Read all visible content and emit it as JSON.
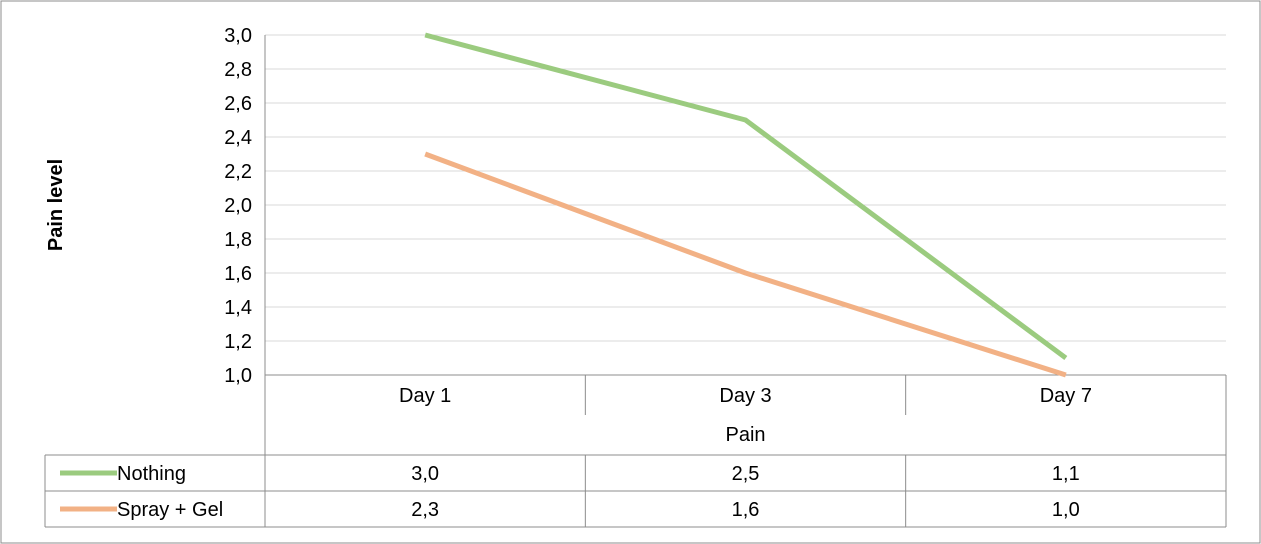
{
  "chart_data": {
    "type": "line",
    "categories": [
      "Day 1",
      "Day 3",
      "Day 7"
    ],
    "category_group_label": "Pain",
    "ylabel": "Pain level",
    "ylim": [
      1.0,
      3.0
    ],
    "ytick_labels": [
      "1,0",
      "1,2",
      "1,4",
      "1,6",
      "1,8",
      "2,0",
      "2,2",
      "2,4",
      "2,6",
      "2,8",
      "3,0"
    ],
    "grid": true,
    "legend": "data-table",
    "series": [
      {
        "name": "Nothing",
        "values": [
          3.0,
          2.5,
          1.1
        ],
        "value_labels": [
          "3,0",
          "2,5",
          "1,1"
        ],
        "color": "#9bcb7f"
      },
      {
        "name": "Spray + Gel",
        "values": [
          2.3,
          1.6,
          1.0
        ],
        "value_labels": [
          "2,3",
          "1,6",
          "1,0"
        ],
        "color": "#f2b185"
      }
    ]
  }
}
